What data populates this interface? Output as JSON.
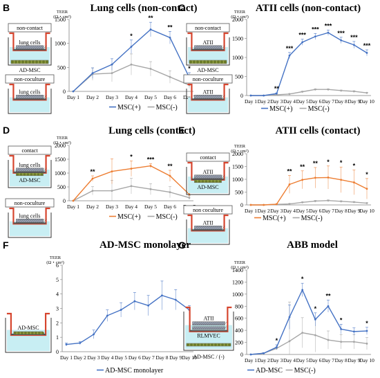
{
  "colors": {
    "pos": "#4472c4",
    "neg": "#a6a6a6",
    "orange": "#ed7d31",
    "medium": "#c8eef3",
    "cup": "#d6452e"
  },
  "chart_data": [
    {
      "id": "B",
      "panel_label": "B",
      "title": "Lung cells (non-contact)",
      "type": "line",
      "ylabel": [
        "TEER",
        "(Ω・cm²)"
      ],
      "ylim": [
        0,
        1500
      ],
      "yticks": [
        "0",
        "500",
        "1000",
        "1500"
      ],
      "ytick_values": [
        0,
        500,
        1000,
        1500
      ],
      "categories": [
        "Day 1",
        "Day 2",
        "Day 3",
        "Day 4",
        "Day 5",
        "Day 6",
        "Day 7"
      ],
      "legend": [
        "MSC(+)",
        "MSC(-)"
      ],
      "series": [
        {
          "name": "MSC(+)",
          "color": "#4472c4",
          "values": [
            0,
            380,
            560,
            930,
            1290,
            1120,
            290
          ],
          "err": [
            0,
            110,
            120,
            140,
            150,
            130,
            100
          ]
        },
        {
          "name": "MSC(-)",
          "color": "#a6a6a6",
          "values": [
            0,
            360,
            380,
            560,
            470,
            300,
            130
          ],
          "err": [
            0,
            130,
            180,
            220,
            150,
            130,
            70
          ]
        }
      ],
      "annotations": [
        {
          "i": 3,
          "text": "*"
        },
        {
          "i": 4,
          "text": "**"
        },
        {
          "i": 5,
          "text": "**"
        },
        {
          "i": 6,
          "text": "*"
        }
      ],
      "schematic": {
        "top_box": "non-contact",
        "top_layers": [
          "lung cells",
          "AD-MSC"
        ],
        "bottom_box": "non-coculture",
        "bottom_layers": [
          "lung cells"
        ]
      }
    },
    {
      "id": "C",
      "panel_label": "C",
      "title": "ATII cells (non-contact)",
      "type": "line",
      "ylabel": [
        "TEER",
        "(Ω・cm²)"
      ],
      "ylim": [
        0,
        2000
      ],
      "yticks": [
        "0",
        "500",
        "1000",
        "1500",
        "2000"
      ],
      "ytick_values": [
        0,
        500,
        1000,
        1500,
        2000
      ],
      "categories": [
        "Day 1",
        "Day 2",
        "Day 3",
        "Day 4",
        "Day 5",
        "Day 6",
        "Day 7",
        "Day 8",
        "Day 9",
        "Day 10"
      ],
      "legend": [
        "MSC(+)",
        "MSC(-)"
      ],
      "series": [
        {
          "name": "MSC(+)",
          "color": "#4472c4",
          "values": [
            0,
            0,
            50,
            1050,
            1400,
            1550,
            1650,
            1450,
            1330,
            1120
          ],
          "err": [
            0,
            0,
            20,
            80,
            80,
            80,
            70,
            80,
            90,
            80
          ]
        },
        {
          "name": "MSC(-)",
          "color": "#a6a6a6",
          "values": [
            0,
            0,
            20,
            40,
            100,
            160,
            160,
            130,
            110,
            70
          ],
          "err": [
            0,
            0,
            5,
            10,
            15,
            15,
            15,
            15,
            15,
            10
          ]
        }
      ],
      "annotations": [
        {
          "i": 2,
          "text": "**"
        },
        {
          "i": 3,
          "text": "***"
        },
        {
          "i": 4,
          "text": "***"
        },
        {
          "i": 5,
          "text": "***"
        },
        {
          "i": 6,
          "text": "***"
        },
        {
          "i": 7,
          "text": "***"
        },
        {
          "i": 8,
          "text": "***"
        },
        {
          "i": 9,
          "text": "***"
        }
      ],
      "schematic": {
        "top_box": "non-contact",
        "top_layers": [
          "ATII",
          "AD-MSC"
        ],
        "bottom_box": "non-coculture",
        "bottom_layers": [
          "ATII"
        ]
      }
    },
    {
      "id": "D",
      "panel_label": "D",
      "title": "Lung cells (contact)",
      "type": "line",
      "ylabel": [
        "TEER",
        "(Ω・cm²)"
      ],
      "ylim": [
        0,
        2000
      ],
      "yticks": [
        "0",
        "500",
        "1000",
        "1500",
        "2000"
      ],
      "ytick_values": [
        0,
        500,
        1000,
        1500,
        2000
      ],
      "categories": [
        "Day 1",
        "Day 2",
        "Day 3",
        "Day 4",
        "Day 5",
        "Day 6",
        "Day 7"
      ],
      "legend": [
        "MSC(+)",
        "MSC(-)"
      ],
      "series": [
        {
          "name": "MSC(+)",
          "color": "#ed7d31",
          "values": [
            0,
            800,
            1060,
            1160,
            1260,
            900,
            230
          ],
          "err": [
            0,
            100,
            450,
            280,
            80,
            200,
            80
          ]
        },
        {
          "name": "MSC(-)",
          "color": "#a6a6a6",
          "values": [
            0,
            360,
            360,
            530,
            420,
            310,
            110
          ],
          "err": [
            0,
            150,
            380,
            280,
            200,
            200,
            70
          ]
        }
      ],
      "annotations": [
        {
          "i": 1,
          "text": "**"
        },
        {
          "i": 3,
          "text": "*"
        },
        {
          "i": 4,
          "text": "***"
        },
        {
          "i": 5,
          "text": "**"
        }
      ],
      "schematic": {
        "top_box": "contact",
        "top_layers": [
          "lung cells",
          "AD-MSC"
        ],
        "bottom_box": "non-coculture",
        "bottom_layers": [
          "lung cells"
        ]
      }
    },
    {
      "id": "E",
      "panel_label": "E",
      "title": "ATII cells (contact)",
      "type": "line",
      "ylabel": [
        "TEER",
        "(Ω・cm²)"
      ],
      "ylim": [
        0,
        2000
      ],
      "yticks": [
        "0",
        "500",
        "1000",
        "1500",
        "2000"
      ],
      "ytick_values": [
        0,
        500,
        1000,
        1500,
        2000
      ],
      "categories": [
        "Day 1",
        "Day 2",
        "Day 3",
        "Day 4",
        "Day 5",
        "Day 6",
        "Day 7",
        "Day 8",
        "Day 9",
        "Day 10"
      ],
      "legend": [
        "MSC(+)",
        "MSC(-)"
      ],
      "series": [
        {
          "name": "MSC(+)",
          "color": "#ed7d31",
          "values": [
            0,
            0,
            30,
            800,
            980,
            1060,
            1070,
            980,
            880,
            630
          ],
          "err": [
            0,
            0,
            10,
            350,
            350,
            400,
            450,
            500,
            480,
            400
          ]
        },
        {
          "name": "MSC(-)",
          "color": "#a6a6a6",
          "values": [
            0,
            0,
            20,
            40,
            100,
            150,
            170,
            140,
            110,
            70
          ],
          "err": [
            0,
            0,
            5,
            15,
            20,
            25,
            25,
            20,
            20,
            15
          ]
        }
      ],
      "annotations": [
        {
          "i": 3,
          "text": "**"
        },
        {
          "i": 4,
          "text": "**"
        },
        {
          "i": 5,
          "text": "**"
        },
        {
          "i": 6,
          "text": "*"
        },
        {
          "i": 7,
          "text": "*"
        },
        {
          "i": 8,
          "text": "*"
        },
        {
          "i": 9,
          "text": "*"
        }
      ],
      "schematic": {
        "top_box": "contact",
        "top_layers": [
          "ATII",
          "AD-MSC"
        ],
        "bottom_box": "non coculture",
        "bottom_layers": [
          "ATII"
        ]
      }
    },
    {
      "id": "F",
      "panel_label": "F",
      "title": "AD-MSC monolayer",
      "type": "line",
      "ylabel": [
        "TEER",
        "(Ω・cm²)"
      ],
      "ylim": [
        0,
        6
      ],
      "yticks": [
        "0",
        "1",
        "2",
        "3",
        "4",
        "5",
        "6"
      ],
      "ytick_values": [
        0,
        1,
        2,
        3,
        4,
        5,
        6
      ],
      "categories": [
        "Day 1",
        "Day 2",
        "Day 3",
        "Day 4",
        "Day 5",
        "Day 6",
        "Day 7",
        "Day 8",
        "Day 9",
        "Day 10"
      ],
      "legend": [
        "AD-MSC monolayer"
      ],
      "series": [
        {
          "name": "AD-MSC monolayer",
          "color": "#4472c4",
          "values": [
            0.5,
            0.6,
            1.2,
            2.5,
            2.9,
            3.5,
            3.2,
            3.9,
            3.6,
            2.9
          ],
          "err": [
            0.1,
            0.1,
            0.3,
            0.4,
            0.5,
            0.6,
            0.7,
            1.0,
            0.7,
            0.3
          ]
        }
      ],
      "annotations": [],
      "schematic": {
        "layers": [
          "AD-MSC"
        ]
      }
    },
    {
      "id": "G",
      "panel_label": "G",
      "title": "ABB model",
      "type": "line",
      "ylabel": [
        "TEER",
        "(Ω・cm²)"
      ],
      "ylim": [
        0,
        1400
      ],
      "yticks": [
        "0",
        "200",
        "400",
        "600",
        "800",
        "1000",
        "1200",
        "1400"
      ],
      "ytick_values": [
        0,
        200,
        400,
        600,
        800,
        1000,
        1200,
        1400
      ],
      "categories": [
        "Day 1",
        "Day 2",
        "Day 3",
        "Day 4",
        "Day 5",
        "Day 6",
        "Day 7",
        "Day 8",
        "Day 9",
        "Day 10"
      ],
      "legend": [
        "AD-MSC",
        "MSC(-)"
      ],
      "series": [
        {
          "name": "AD-MSC",
          "color": "#4472c4",
          "values": [
            0,
            20,
            120,
            620,
            1070,
            580,
            800,
            420,
            380,
            390
          ],
          "err": [
            0,
            10,
            40,
            200,
            110,
            110,
            100,
            80,
            60,
            60
          ]
        },
        {
          "name": "MSC(-)",
          "color": "#a6a6a6",
          "values": [
            0,
            20,
            100,
            220,
            360,
            320,
            240,
            210,
            210,
            180
          ],
          "err": [
            0,
            10,
            20,
            650,
            250,
            280,
            150,
            120,
            120,
            100
          ]
        }
      ],
      "annotations": [
        {
          "i": 2,
          "text": "*"
        },
        {
          "i": 4,
          "text": "*"
        },
        {
          "i": 5,
          "text": "*"
        },
        {
          "i": 6,
          "text": "**"
        },
        {
          "i": 7,
          "text": "*"
        },
        {
          "i": 9,
          "text": "*"
        }
      ],
      "schematic": {
        "layers": [
          "ATII",
          "RLMVEC"
        ],
        "caption": "AD-MSC / (-)"
      }
    }
  ]
}
